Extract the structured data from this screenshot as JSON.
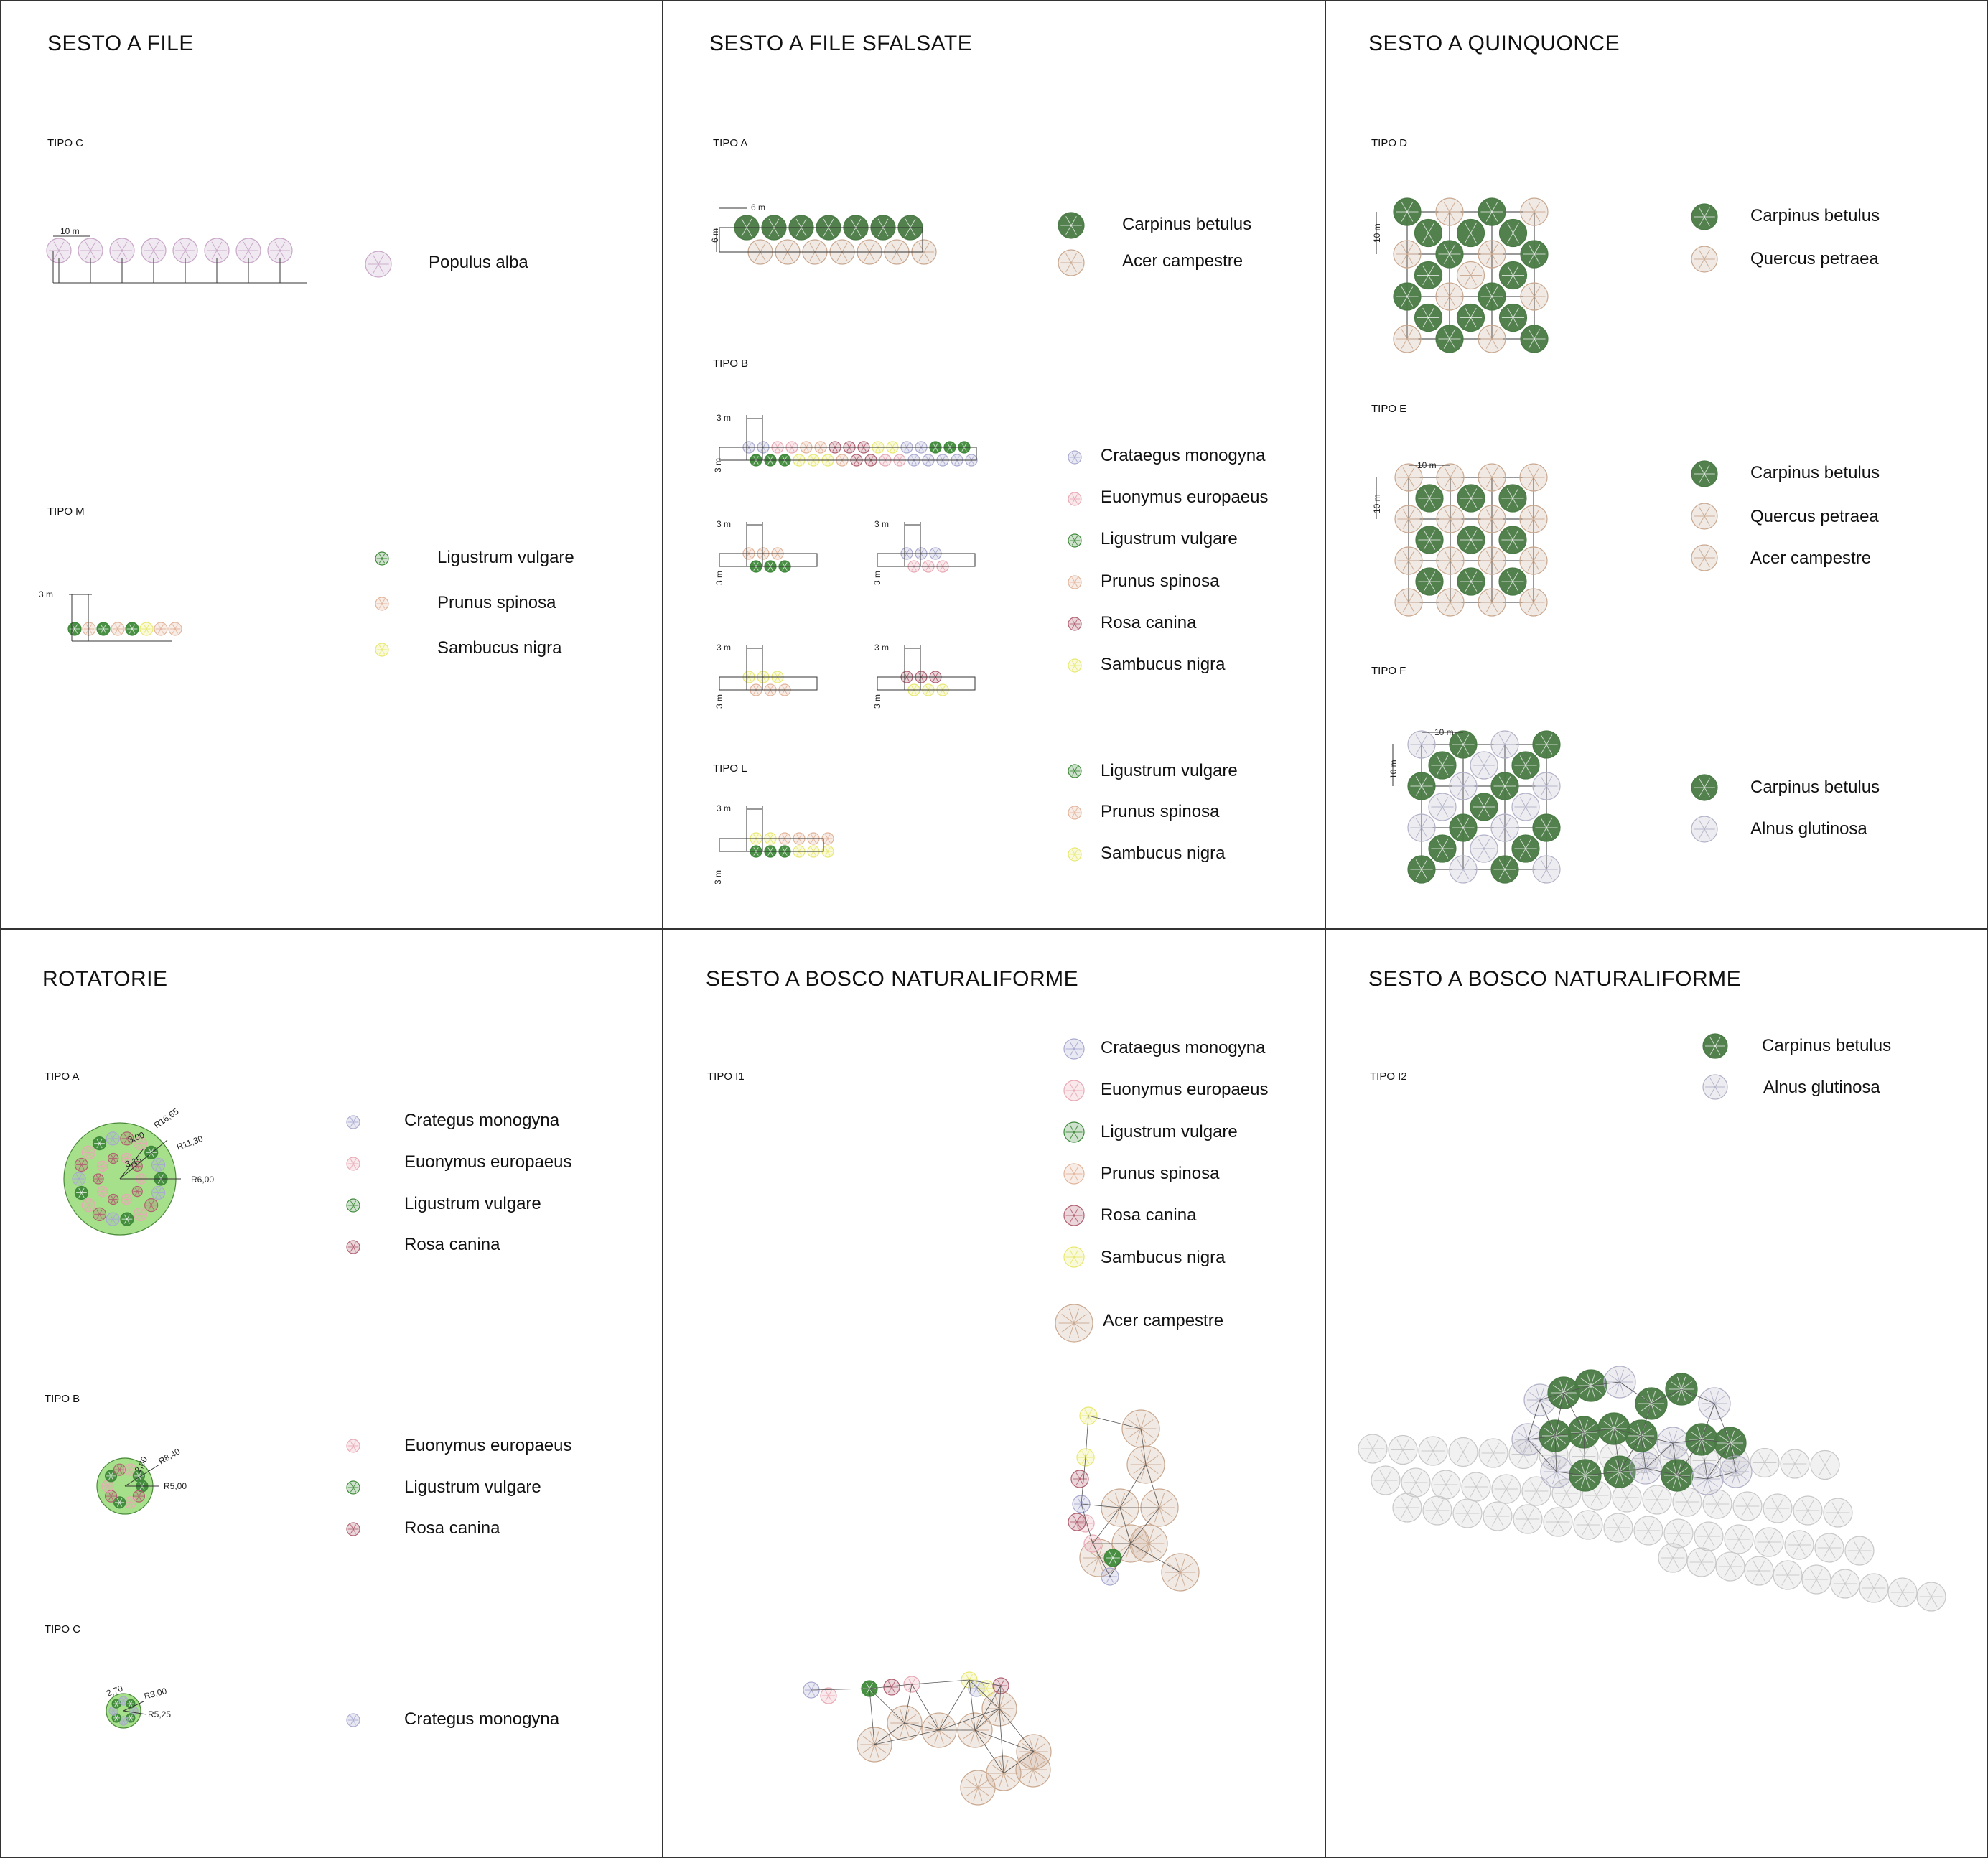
{
  "colors": {
    "carpinus_betulus": "#4a7a45",
    "acer_campestre": "#c9a890",
    "quercus_petraea": "#c9a890",
    "populus_alba": "#c8a6c8",
    "crataegus_monogyna": "#a9a9d0",
    "euonymus_europaeus": "#e8a9b4",
    "ligustrum_vulgare": "#3f8a3a",
    "prunus_spinosa": "#e2b49a",
    "rosa_canina": "#b06070",
    "sambucus_nigra": "#e8e870",
    "alnus_glutinosa": "#b2b2c8",
    "generic_tree": "#c8c8c8",
    "roundabout_fill": "#a6e08a",
    "lines": "#333333"
  },
  "panels": [
    {
      "id": "sesto-a-file",
      "title": "SESTO A FILE",
      "groups": [
        {
          "tipo": "TIPO C",
          "dims": [
            "10 m"
          ],
          "legend": [
            {
              "label": "Populus alba",
              "species": "populus_alba"
            }
          ]
        },
        {
          "tipo": "TIPO M",
          "dims": [
            "3 m"
          ],
          "legend": [
            {
              "label": "Ligustrum vulgare",
              "species": "ligustrum_vulgare"
            },
            {
              "label": "Prunus spinosa",
              "species": "prunus_spinosa"
            },
            {
              "label": "Sambucus nigra",
              "species": "sambucus_nigra"
            }
          ]
        }
      ]
    },
    {
      "id": "sesto-a-file-sfalsate",
      "title": "SESTO A FILE SFALSATE",
      "groups": [
        {
          "tipo": "TIPO A",
          "dims": [
            "6 m",
            "6 m"
          ],
          "legend": [
            {
              "label": "Carpinus betulus",
              "species": "carpinus_betulus"
            },
            {
              "label": "Acer campestre",
              "species": "acer_campestre"
            }
          ]
        },
        {
          "tipo": "TIPO B",
          "dims": [
            "3 m",
            "3 m"
          ],
          "legend": [
            {
              "label": "Crataegus monogyna",
              "species": "crataegus_monogyna"
            },
            {
              "label": "Euonymus europaeus",
              "species": "euonymus_europaeus"
            },
            {
              "label": "Ligustrum vulgare",
              "species": "ligustrum_vulgare"
            },
            {
              "label": "Prunus spinosa",
              "species": "prunus_spinosa"
            },
            {
              "label": "Rosa canina",
              "species": "rosa_canina"
            },
            {
              "label": "Sambucus nigra",
              "species": "sambucus_nigra"
            }
          ]
        },
        {
          "tipo": "TIPO L",
          "dims": [
            "3 m",
            "3 m"
          ],
          "legend": [
            {
              "label": "Ligustrum vulgare",
              "species": "ligustrum_vulgare"
            },
            {
              "label": "Prunus spinosa",
              "species": "prunus_spinosa"
            },
            {
              "label": "Sambucus nigra",
              "species": "sambucus_nigra"
            }
          ]
        }
      ]
    },
    {
      "id": "sesto-a-quinquonce",
      "title": "SESTO A QUINQUONCE",
      "groups": [
        {
          "tipo": "TIPO D",
          "dims": [
            "10 m"
          ],
          "legend": [
            {
              "label": "Carpinus betulus",
              "species": "carpinus_betulus"
            },
            {
              "label": "Quercus petraea",
              "species": "quercus_petraea"
            }
          ]
        },
        {
          "tipo": "TIPO E",
          "dims": [
            "10 m",
            "10 m"
          ],
          "legend": [
            {
              "label": "Carpinus betulus",
              "species": "carpinus_betulus"
            },
            {
              "label": "Quercus petraea",
              "species": "quercus_petraea"
            },
            {
              "label": "Acer campestre",
              "species": "acer_campestre"
            }
          ]
        },
        {
          "tipo": "TIPO F",
          "dims": [
            "10 m",
            "10 m"
          ],
          "legend": [
            {
              "label": "Carpinus betulus",
              "species": "carpinus_betulus"
            },
            {
              "label": "Alnus glutinosa",
              "species": "alnus_glutinosa"
            }
          ]
        }
      ]
    },
    {
      "id": "rotatorie",
      "title": "ROTATORIE",
      "groups": [
        {
          "tipo": "TIPO A",
          "dims": [
            "R16,65",
            "3,00",
            "R11,30",
            "3,15",
            "R6,00"
          ],
          "legend": [
            {
              "label": "Crategus monogyna",
              "species": "crataegus_monogyna"
            },
            {
              "label": "Euonymus europaeus",
              "species": "euonymus_europaeus"
            },
            {
              "label": "Ligustrum vulgare",
              "species": "ligustrum_vulgare"
            },
            {
              "label": "Rosa canina",
              "species": "rosa_canina"
            }
          ]
        },
        {
          "tipo": "TIPO B",
          "dims": [
            "R8,40",
            "2,60",
            "R5,00"
          ],
          "legend": [
            {
              "label": "Euonymus europaeus",
              "species": "euonymus_europaeus"
            },
            {
              "label": "Ligustrum vulgare",
              "species": "ligustrum_vulgare"
            },
            {
              "label": "Rosa canina",
              "species": "rosa_canina"
            }
          ]
        },
        {
          "tipo": "TIPO C",
          "dims": [
            "2,70",
            "R3,00",
            "R5,25"
          ],
          "legend": [
            {
              "label": "Crategus monogyna",
              "species": "crataegus_monogyna"
            }
          ]
        }
      ]
    },
    {
      "id": "sesto-a-bosco-naturaliforme-1",
      "title": "SESTO A BOSCO NATURALIFORME",
      "groups": [
        {
          "tipo": "TIPO I1",
          "dims": [],
          "legend": [
            {
              "label": "Crataegus monogyna",
              "species": "crataegus_monogyna"
            },
            {
              "label": "Euonymus europaeus",
              "species": "euonymus_europaeus"
            },
            {
              "label": "Ligustrum vulgare",
              "species": "ligustrum_vulgare"
            },
            {
              "label": "Prunus spinosa",
              "species": "prunus_spinosa"
            },
            {
              "label": "Rosa canina",
              "species": "rosa_canina"
            },
            {
              "label": "Sambucus nigra",
              "species": "sambucus_nigra"
            },
            {
              "label": "Acer campestre",
              "species": "acer_campestre"
            }
          ]
        }
      ]
    },
    {
      "id": "sesto-a-bosco-naturaliforme-2",
      "title": "SESTO A BOSCO NATURALIFORME",
      "groups": [
        {
          "tipo": "TIPO I2",
          "dims": [],
          "legend": [
            {
              "label": "Carpinus betulus",
              "species": "carpinus_betulus"
            },
            {
              "label": "Alnus glutinosa",
              "species": "alnus_glutinosa"
            }
          ]
        }
      ]
    }
  ]
}
